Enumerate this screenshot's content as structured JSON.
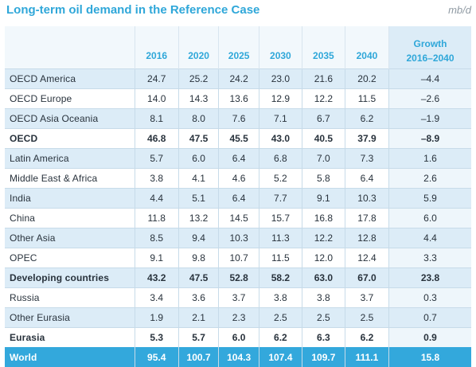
{
  "header": {
    "title": "Long-term oil demand in the Reference Case",
    "unit": "mb/d"
  },
  "table": {
    "columns": [
      "2016",
      "2020",
      "2025",
      "2030",
      "2035",
      "2040"
    ],
    "growth_header": [
      "Growth",
      "2016–2040"
    ],
    "rows": [
      {
        "region": "OECD America",
        "values": [
          "24.7",
          "25.2",
          "24.2",
          "23.0",
          "21.6",
          "20.2"
        ],
        "growth": "–4.4",
        "type": "normal"
      },
      {
        "region": "OECD Europe",
        "values": [
          "14.0",
          "14.3",
          "13.6",
          "12.9",
          "12.2",
          "11.5"
        ],
        "growth": "–2.6",
        "type": "normal"
      },
      {
        "region": "OECD Asia Oceania",
        "values": [
          "8.1",
          "8.0",
          "7.6",
          "7.1",
          "6.7",
          "6.2"
        ],
        "growth": "–1.9",
        "type": "normal"
      },
      {
        "region": "OECD",
        "values": [
          "46.8",
          "47.5",
          "45.5",
          "43.0",
          "40.5",
          "37.9"
        ],
        "growth": "–8.9",
        "type": "subtotal"
      },
      {
        "region": "Latin America",
        "values": [
          "5.7",
          "6.0",
          "6.4",
          "6.8",
          "7.0",
          "7.3"
        ],
        "growth": "1.6",
        "type": "normal"
      },
      {
        "region": "Middle East & Africa",
        "values": [
          "3.8",
          "4.1",
          "4.6",
          "5.2",
          "5.8",
          "6.4"
        ],
        "growth": "2.6",
        "type": "normal"
      },
      {
        "region": "India",
        "values": [
          "4.4",
          "5.1",
          "6.4",
          "7.7",
          "9.1",
          "10.3"
        ],
        "growth": "5.9",
        "type": "normal"
      },
      {
        "region": "China",
        "values": [
          "11.8",
          "13.2",
          "14.5",
          "15.7",
          "16.8",
          "17.8"
        ],
        "growth": "6.0",
        "type": "normal"
      },
      {
        "region": "Other Asia",
        "values": [
          "8.5",
          "9.4",
          "10.3",
          "11.3",
          "12.2",
          "12.8"
        ],
        "growth": "4.4",
        "type": "normal"
      },
      {
        "region": "OPEC",
        "values": [
          "9.1",
          "9.8",
          "10.7",
          "11.5",
          "12.0",
          "12.4"
        ],
        "growth": "3.3",
        "type": "normal"
      },
      {
        "region": "Developing countries",
        "values": [
          "43.2",
          "47.5",
          "52.8",
          "58.2",
          "63.0",
          "67.0"
        ],
        "growth": "23.8",
        "type": "subtotal"
      },
      {
        "region": "Russia",
        "values": [
          "3.4",
          "3.6",
          "3.7",
          "3.8",
          "3.8",
          "3.7"
        ],
        "growth": "0.3",
        "type": "normal"
      },
      {
        "region": "Other Eurasia",
        "values": [
          "1.9",
          "2.1",
          "2.3",
          "2.5",
          "2.5",
          "2.5"
        ],
        "growth": "0.7",
        "type": "normal"
      },
      {
        "region": "Eurasia",
        "values": [
          "5.3",
          "5.7",
          "6.0",
          "6.2",
          "6.3",
          "6.2"
        ],
        "growth": "0.9",
        "type": "subtotal"
      },
      {
        "region": "World",
        "values": [
          "95.4",
          "100.7",
          "104.3",
          "107.4",
          "109.7",
          "111.1"
        ],
        "growth": "15.8",
        "type": "world"
      }
    ]
  },
  "colors": {
    "title": "#2fa7d9",
    "unit": "#8f9aa3",
    "band": "#dcecf7",
    "world_row": "#33a8dc",
    "text": "#28323c"
  }
}
